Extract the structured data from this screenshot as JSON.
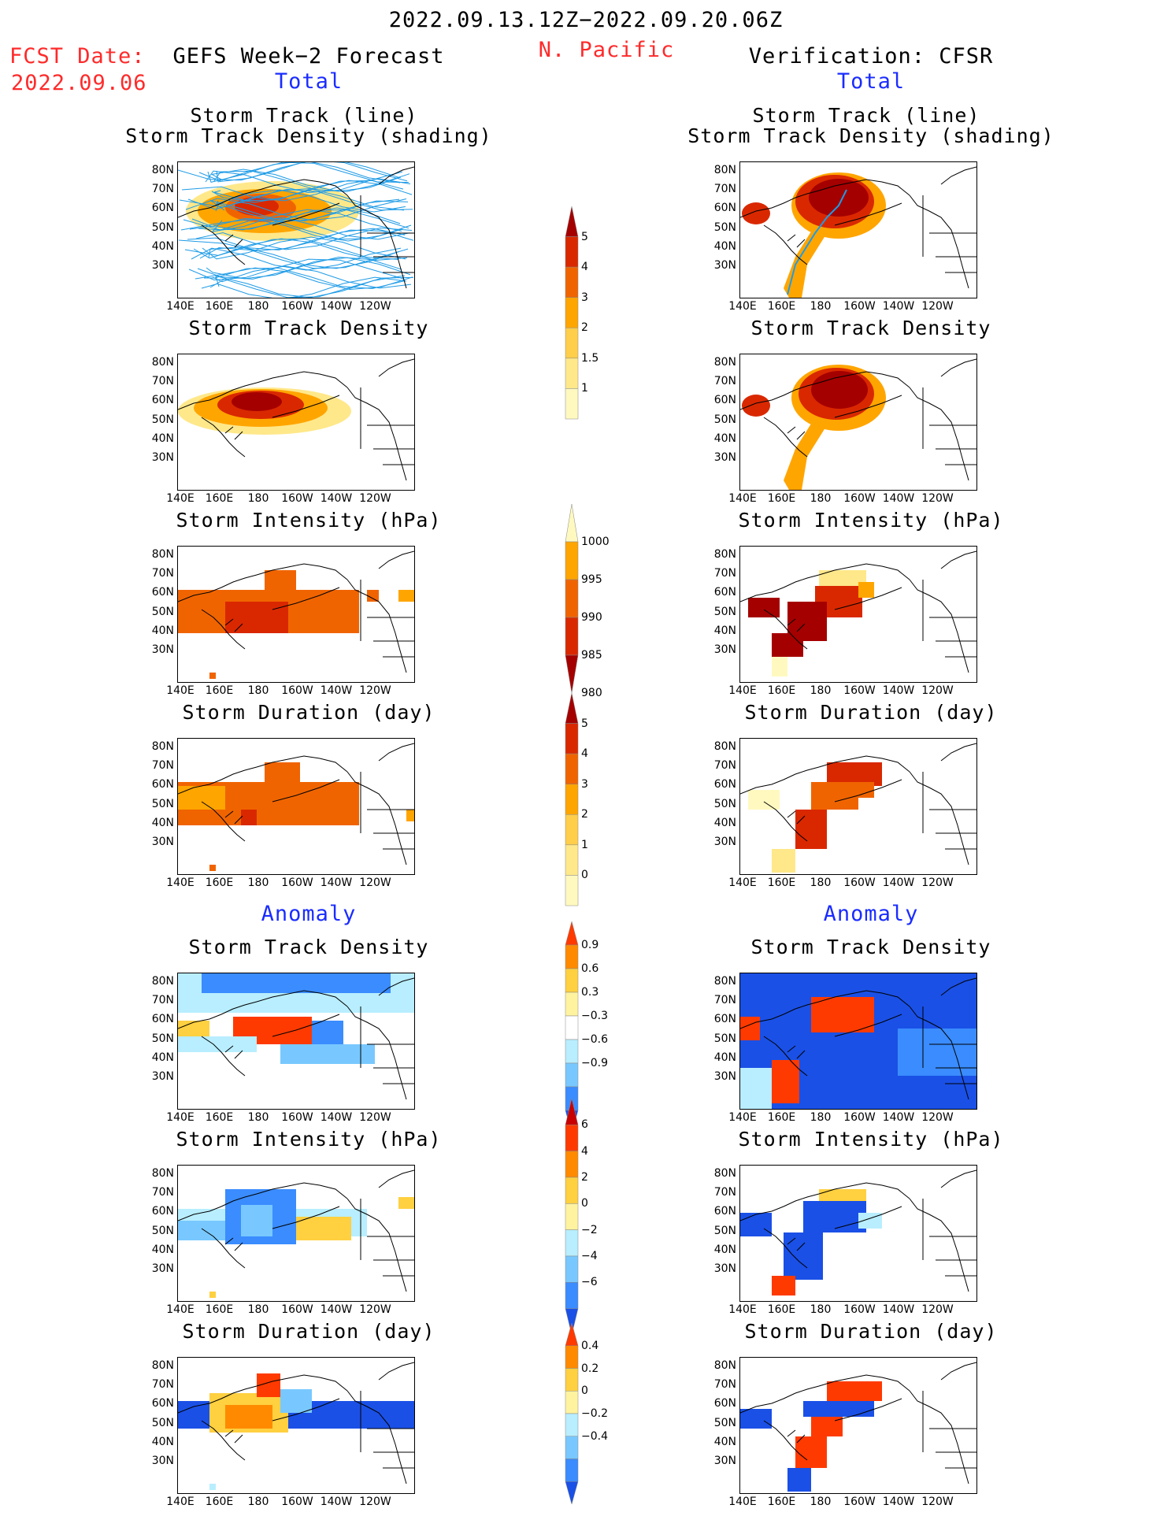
{
  "header": {
    "period": "2022.09.13.12Z−2022.09.20.06Z",
    "region": "N. Pacific",
    "fcst_date_label": "FCST Date:",
    "fcst_date": "2022.09.06",
    "left_title": "GEFS Week−2 Forecast",
    "right_title": "Verification: CFSR",
    "left_sub": "Total",
    "right_sub": "Total"
  },
  "sections": {
    "anomaly_left": "Anomaly",
    "anomaly_right": "Anomaly"
  },
  "panel_titles": {
    "track_line": "Storm Track (line)",
    "track_shading": "Storm Track Density (shading)",
    "track_density": "Storm Track Density",
    "intensity": "Storm Intensity (hPa)",
    "duration": "Storm Duration (day)"
  },
  "axes": {
    "lat_labels": [
      "80N",
      "70N",
      "60N",
      "50N",
      "40N",
      "30N"
    ],
    "lon_labels": [
      "140E",
      "160E",
      "180",
      "160W",
      "140W",
      "120W"
    ]
  },
  "colorbars": {
    "density_total": {
      "labels": [
        "5",
        "4",
        "3",
        "2",
        "1.5",
        "1"
      ],
      "colors": [
        "#a50000",
        "#d92800",
        "#f06400",
        "#ffa500",
        "#ffce4a",
        "#ffe88a",
        "#fff9c0"
      ]
    },
    "intensity_total": {
      "labels": [
        "1000",
        "995",
        "990",
        "985",
        "980"
      ],
      "colors": [
        "#fff9c0",
        "#ffa500",
        "#f06400",
        "#d92800",
        "#a50000"
      ]
    },
    "duration_total": {
      "labels": [
        "5",
        "4",
        "3",
        "2",
        "1",
        "0"
      ],
      "colors": [
        "#a50000",
        "#d92800",
        "#f06400",
        "#ffa500",
        "#ffce4a",
        "#ffe88a",
        "#fff9c0"
      ]
    },
    "density_anom": {
      "labels": [
        "0.9",
        "0.6",
        "0.3",
        "−0.3",
        "−0.6",
        "−0.9"
      ],
      "colors": [
        "#ff3a00",
        "#ff8a00",
        "#ffd040",
        "#fff3a0",
        "#ffffff",
        "#b8eeff",
        "#78c8ff",
        "#3a8cff",
        "#1a50e6"
      ]
    },
    "intensity_anom": {
      "labels": [
        "6",
        "4",
        "2",
        "0",
        "−2",
        "−4",
        "−6"
      ],
      "colors": [
        "#c80000",
        "#ff3a00",
        "#ff8a00",
        "#ffd040",
        "#fff3a0",
        "#b8eeff",
        "#78c8ff",
        "#3a8cff",
        "#1a50e6"
      ]
    },
    "duration_anom": {
      "labels": [
        "0.4",
        "0.2",
        "0",
        "−0.2",
        "−0.4"
      ],
      "colors": [
        "#ff3a00",
        "#ff8a00",
        "#ffd040",
        "#fff3a0",
        "#b8eeff",
        "#78c8ff",
        "#3a8cff",
        "#1a50e6"
      ]
    }
  }
}
